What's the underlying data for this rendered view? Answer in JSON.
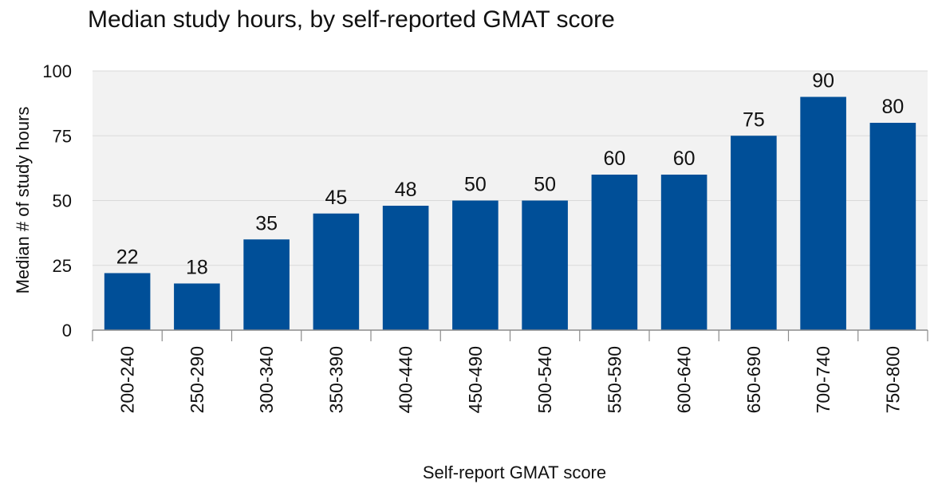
{
  "chart_data": {
    "type": "bar",
    "title": "Median study hours, by self-reported GMAT score",
    "xlabel": "Self-report GMAT score",
    "ylabel": "Median # of study hours",
    "categories": [
      "200-240",
      "250-290",
      "300-340",
      "350-390",
      "400-440",
      "450-490",
      "500-540",
      "550-590",
      "600-640",
      "650-690",
      "700-740",
      "750-800"
    ],
    "values": [
      22,
      18,
      35,
      45,
      48,
      50,
      50,
      60,
      60,
      75,
      90,
      80
    ],
    "data_labels": [
      "22",
      "18",
      "35",
      "45",
      "48",
      "50",
      "50",
      "60",
      "60",
      "75",
      "90",
      "80"
    ],
    "ylim": [
      0,
      100
    ],
    "yticks": [
      0,
      25,
      50,
      75,
      100
    ],
    "ytick_labels": [
      "0",
      "25",
      "50",
      "75",
      "100"
    ],
    "grid": true,
    "legend": "none",
    "colors": {
      "bar": "#004F98",
      "plot_background": "#F2F2F2",
      "gridline": "#D9D9D9",
      "axis": "#8C8C8C"
    }
  }
}
